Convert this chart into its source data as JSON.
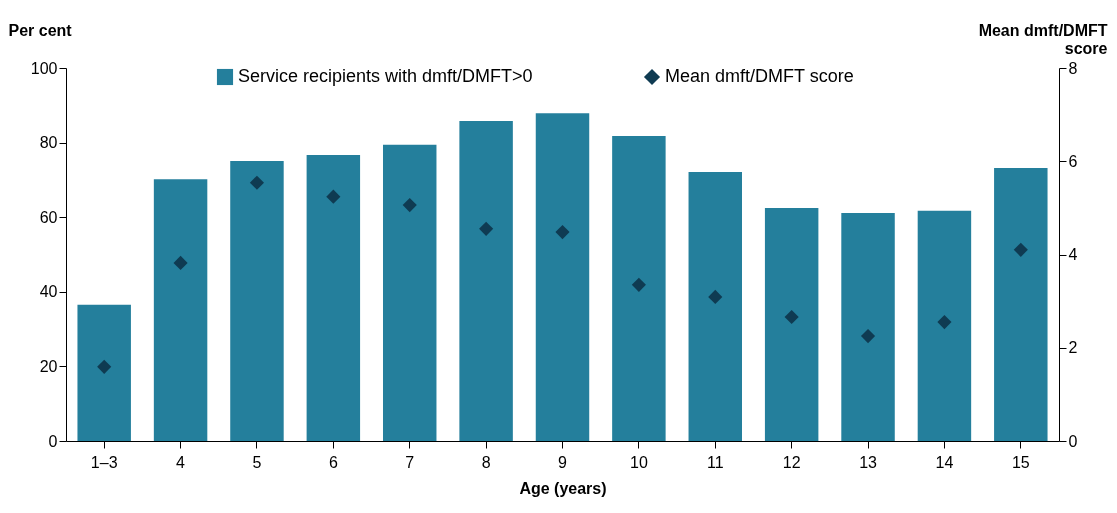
{
  "chart_data": {
    "type": "bar",
    "xlabel": "Age (years)",
    "ylabel": "Per cent",
    "y2label": "Mean dmft/DMFT score",
    "categories": [
      "1–3",
      "4",
      "5",
      "6",
      "7",
      "8",
      "9",
      "10",
      "11",
      "12",
      "13",
      "14",
      "15"
    ],
    "series": [
      {
        "name": "Service recipients with dmft/DMFT>0",
        "color": "#247f9c",
        "values": [
          36.5,
          70.2,
          75.1,
          76.7,
          79.4,
          85.8,
          87.9,
          81.8,
          72.1,
          62.5,
          61.1,
          61.7,
          73.2
        ]
      },
      {
        "name": "Mean dmft/DMFT score",
        "type": "scatter",
        "axis": "y2",
        "marker": "diamond",
        "color": "#0f3b52",
        "values": [
          1.59,
          3.82,
          5.54,
          5.24,
          5.06,
          4.55,
          4.48,
          3.35,
          3.09,
          2.66,
          2.25,
          2.55,
          4.1
        ]
      }
    ],
    "ylim": [
      0,
      100
    ],
    "yticks": [
      0,
      20,
      40,
      60,
      80,
      100
    ],
    "y2lim": [
      0,
      8
    ],
    "y2ticks": [
      0,
      2,
      4,
      6,
      8
    ],
    "grid": false,
    "legend": "top"
  }
}
